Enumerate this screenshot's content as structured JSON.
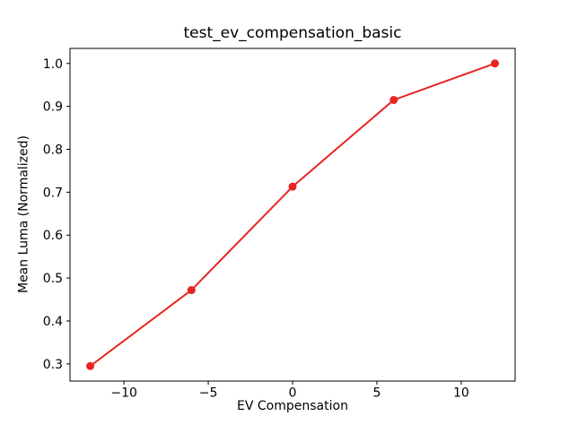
{
  "chart_data": {
    "type": "line",
    "title": "test_ev_compensation_basic",
    "xlabel": "EV Compensation",
    "ylabel": "Mean Luma (Normalized)",
    "x": [
      -12,
      -6,
      0,
      6,
      12
    ],
    "y": [
      0.295,
      0.472,
      0.713,
      0.915,
      1.0
    ],
    "xlim": [
      -13.2,
      13.2
    ],
    "ylim": [
      0.26,
      1.035
    ],
    "xticks": [
      -10,
      -5,
      0,
      5,
      10
    ],
    "xtick_labels": [
      "−10",
      "−5",
      "0",
      "5",
      "10"
    ],
    "yticks": [
      0.3,
      0.4,
      0.5,
      0.6,
      0.7,
      0.8,
      0.9,
      1.0
    ],
    "ytick_labels": [
      "0.3",
      "0.4",
      "0.5",
      "0.6",
      "0.7",
      "0.8",
      "0.9",
      "1.0"
    ],
    "line_color": "#e62522",
    "marker": "o",
    "grid": false,
    "legend": "none",
    "axes_color": "#000000",
    "background_color": "#ffffff"
  }
}
